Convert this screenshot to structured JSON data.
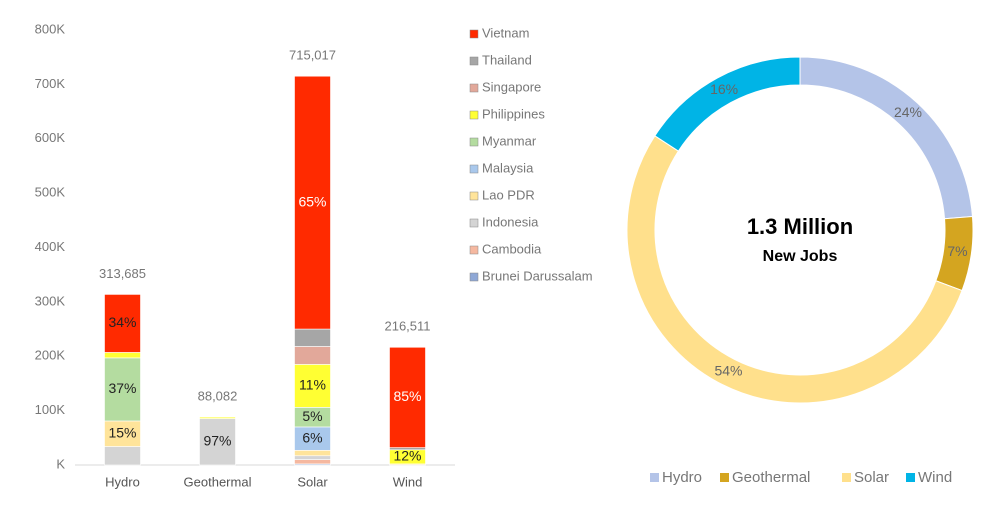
{
  "chart_data": [
    {
      "type": "stacked_bar",
      "categories": [
        "Hydro",
        "Geothermal",
        "Solar",
        "Wind"
      ],
      "series": [
        {
          "name": "Brunei Darussalam",
          "color": "#8fa8d6",
          "values": [
            0,
            0,
            2000,
            0
          ],
          "share_labels": [
            null,
            null,
            null,
            null
          ]
        },
        {
          "name": "Cambodia",
          "color": "#f5b8a0",
          "values": [
            0,
            0,
            8000,
            0
          ],
          "share_labels": [
            null,
            null,
            null,
            null
          ]
        },
        {
          "name": "Indonesia",
          "color": "#d4d4d4",
          "values": [
            34000,
            85440,
            7000,
            0
          ],
          "share_labels": [
            null,
            "97%",
            null,
            null
          ]
        },
        {
          "name": "Lao PDR",
          "color": "#ffe49a",
          "values": [
            47000,
            0,
            10000,
            2000
          ],
          "share_labels": [
            "15%",
            null,
            null,
            null
          ]
        },
        {
          "name": "Malaysia",
          "color": "#a9c8ec",
          "values": [
            0,
            0,
            43000,
            0
          ],
          "share_labels": [
            null,
            null,
            "6%",
            null
          ]
        },
        {
          "name": "Myanmar",
          "color": "#b4dca0",
          "values": [
            116000,
            0,
            36000,
            0
          ],
          "share_labels": [
            "37%",
            null,
            "5%",
            null
          ]
        },
        {
          "name": "Philippines",
          "color": "#ffff33",
          "values": [
            10000,
            2642,
            79000,
            26000
          ],
          "share_labels": [
            null,
            null,
            "11%",
            "12%"
          ]
        },
        {
          "name": "Singapore",
          "color": "#e2a89a",
          "values": [
            0,
            0,
            33000,
            0
          ],
          "share_labels": [
            null,
            null,
            null,
            null
          ]
        },
        {
          "name": "Thailand",
          "color": "#a6a6a6",
          "values": [
            0,
            0,
            32017,
            4000
          ],
          "share_labels": [
            null,
            null,
            null,
            null
          ]
        },
        {
          "name": "Vietnam",
          "color": "#ff2a00",
          "values": [
            106685,
            0,
            465000,
            184511
          ],
          "share_labels": [
            "34%",
            null,
            "65%",
            "85%"
          ]
        }
      ],
      "totals": [
        313685,
        88082,
        715017,
        216511
      ],
      "total_labels": [
        "313,685",
        "88,082",
        "715,017",
        "216,511"
      ],
      "ylim": [
        0,
        800000
      ],
      "yticks": [
        {
          "value": 0,
          "label": "K"
        },
        {
          "value": 100000,
          "label": "100K"
        },
        {
          "value": 200000,
          "label": "200K"
        },
        {
          "value": 300000,
          "label": "300K"
        },
        {
          "value": 400000,
          "label": "400K"
        },
        {
          "value": 500000,
          "label": "500K"
        },
        {
          "value": 600000,
          "label": "600K"
        },
        {
          "value": 700000,
          "label": "700K"
        },
        {
          "value": 800000,
          "label": "800K"
        }
      ],
      "legend": "right"
    },
    {
      "type": "donut",
      "center_title": "1.3 Million",
      "center_subtitle": "New Jobs",
      "categories": [
        "Hydro",
        "Geothermal",
        "Solar",
        "Wind"
      ],
      "values": [
        24,
        7,
        54,
        16
      ],
      "value_labels": [
        "24%",
        "7%",
        "54%",
        "16%"
      ],
      "colors": [
        "#b4c4e8",
        "#d4a520",
        "#ffe08c",
        "#00b4e6"
      ],
      "legend": "bottom"
    }
  ]
}
